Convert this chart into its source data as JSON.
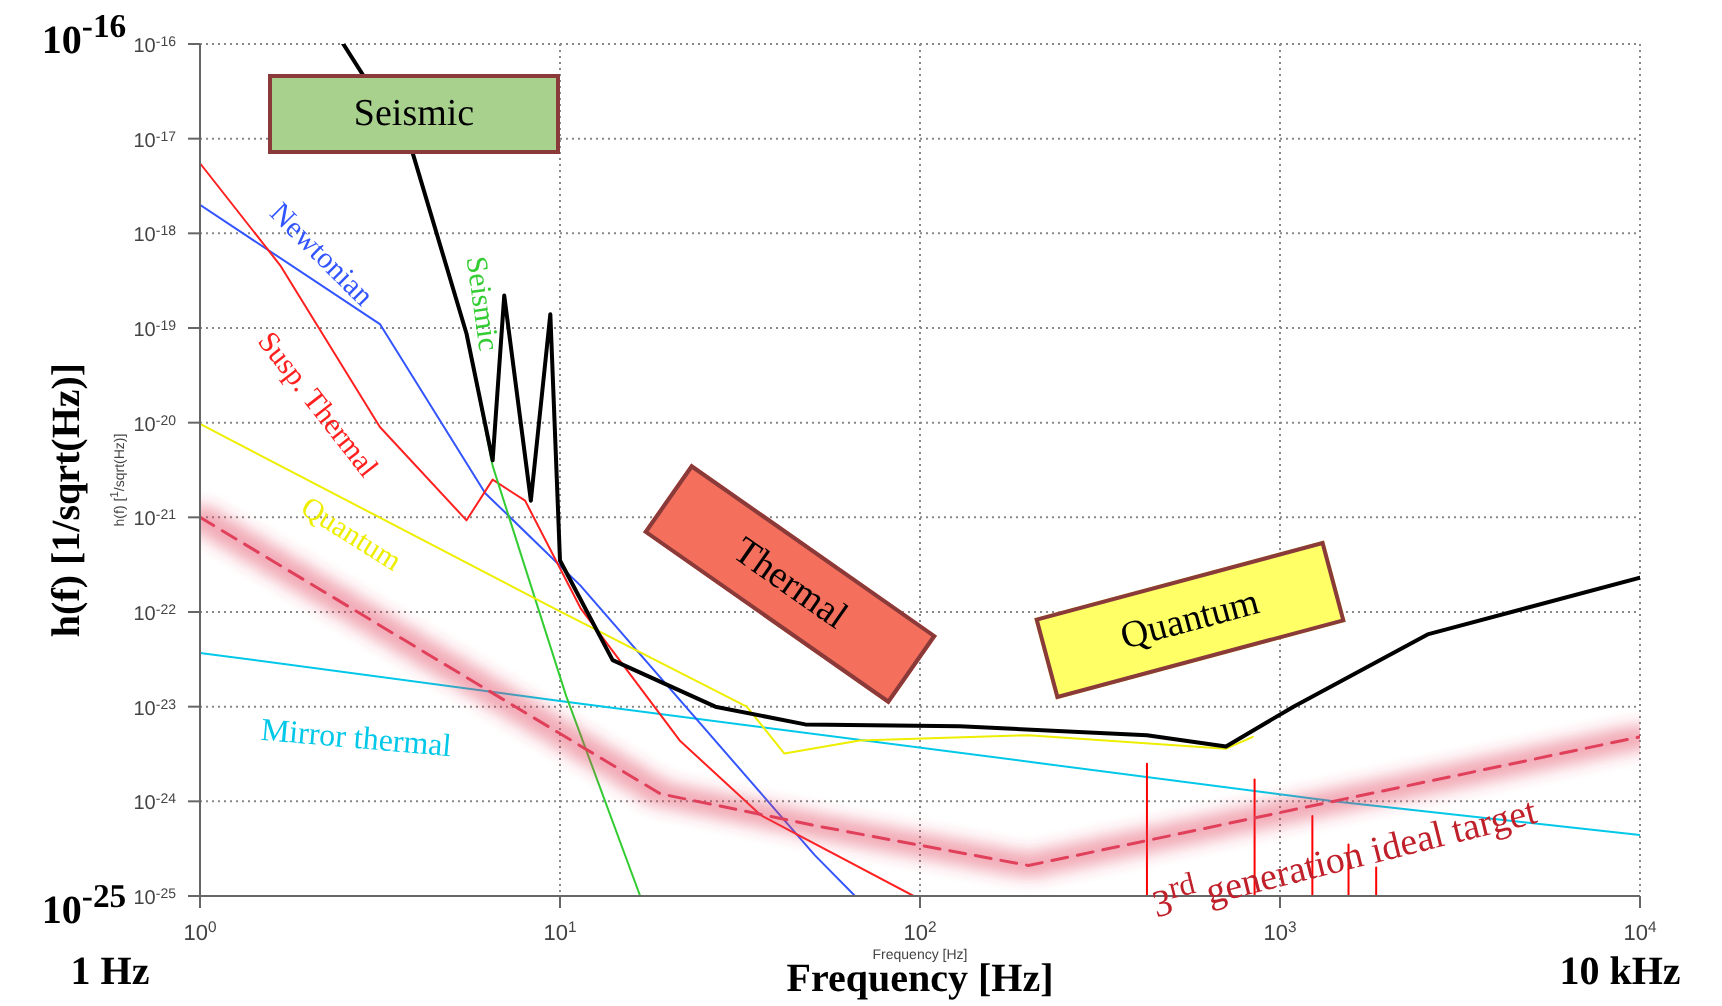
{
  "chart_data": {
    "type": "line",
    "ylabel": "h(f) [1/sqrt(Hz)]",
    "xlabel": "Frequency [Hz]",
    "log": "xy",
    "grid": true,
    "legend": false,
    "marker": "none",
    "xlim": [
      1,
      10000
    ],
    "ylim": [
      1e-25,
      1e-16
    ],
    "xticks": [
      {
        "value": 1,
        "label": "10$^{0}$"
      },
      {
        "value": 10,
        "label": "10$^{1}$"
      },
      {
        "value": 100,
        "label": "10$^{2}$"
      },
      {
        "value": 1000,
        "label": "10$^{3}$"
      },
      {
        "value": 10000,
        "label": "10$^{4}$"
      }
    ],
    "yticks": [
      {
        "value": 1e-25,
        "label": "10$^{-25}$"
      },
      {
        "value": 1e-24,
        "label": "10$^{-24}$"
      },
      {
        "value": 1e-23,
        "label": "10$^{-23}$"
      },
      {
        "value": 1e-22,
        "label": "10$^{-22}$"
      },
      {
        "value": 1e-21,
        "label": "10$^{-21}$"
      },
      {
        "value": 1e-20,
        "label": "10$^{-20}$"
      },
      {
        "value": 1e-19,
        "label": "10$^{-19}$"
      },
      {
        "value": 1e-18,
        "label": "10$^{-18}$"
      },
      {
        "value": 1e-17,
        "label": "10$^{-17}$"
      },
      {
        "value": 1e-16,
        "label": "10$^{-16}$"
      }
    ],
    "annotations": [
      "Seismic",
      "Thermal",
      "Quantum",
      "10$^{-16}$",
      "10$^{-25}$",
      "1 Hz",
      "10 kHz",
      "Frequency [Hz]",
      "h(f) [$^{1}$/sqrt(Hz)]"
    ],
    "series": [
      {
        "name": "Mirror thermal",
        "color": "#00c8e8",
        "x": [
          1,
          10,
          1410,
          10000
        ],
        "values": [
          3.7e-23,
          1.15e-23,
          1e-24,
          4.4e-25
        ]
      },
      {
        "name": "Newtonian",
        "color": "#3355ff",
        "x": [
          1,
          3.16,
          6.2,
          11.4,
          51,
          66
        ],
        "values": [
          2e-18,
          1.1e-19,
          1.8e-21,
          1.9e-22,
          2.7e-25,
          1e-25
        ]
      },
      {
        "name": "Susp. Thermal",
        "color": "#ff2020",
        "x": [
          1,
          1.67,
          3.16,
          5.5,
          6.5,
          8,
          11.4,
          21.5,
          36,
          96
        ],
        "values": [
          5.5e-18,
          4.6e-19,
          9e-21,
          9.3e-22,
          2.5e-21,
          1.5e-21,
          1.1e-22,
          4.4e-24,
          7.2e-25,
          1e-25
        ]
      },
      {
        "name": "Seismic",
        "color": "#33cc33",
        "x": [
          2.5,
          3.9,
          5.5,
          6.5,
          10.4,
          16.7
        ],
        "values": [
          1e-16,
          7e-18,
          8.7e-20,
          3.5e-21,
          1.3e-23,
          1e-25
        ]
      },
      {
        "name": "Quantum",
        "color": "#eeee00",
        "x": [
          1,
          9.6,
          33,
          42,
          68,
          200,
          708,
          840
        ],
        "values": [
          9.7e-21,
          1.1e-22,
          1e-23,
          3.2e-24,
          4.4e-24,
          5e-24,
          3.6e-24,
          4.8e-24
        ]
      },
      {
        "color": "#ff0000",
        "x": [
          427,
          427
        ],
        "values": [
          1e-25,
          2.5e-24
        ]
      },
      {
        "color": "#ff0000",
        "x": [
          850,
          850
        ],
        "values": [
          1e-25,
          1.7e-24
        ]
      },
      {
        "color": "#ff0000",
        "x": [
          1230,
          1230
        ],
        "values": [
          1e-25,
          7e-25
        ]
      },
      {
        "color": "#ff0000",
        "x": [
          1550,
          1550
        ],
        "values": [
          1e-25,
          3.5e-25
        ]
      },
      {
        "color": "#ff0000",
        "x": [
          1850,
          1850
        ],
        "values": [
          1e-25,
          2e-25
        ]
      },
      {
        "color": "#000000",
        "x": [
          2.5,
          3.9,
          5.5,
          6.5,
          7,
          8.3,
          9.4,
          10,
          14,
          27,
          48,
          129,
          427,
          708,
          1090,
          2570,
          10000
        ],
        "values": [
          1e-16,
          7e-18,
          8.7e-20,
          4e-21,
          2.2e-19,
          1.5e-21,
          1.4e-19,
          3.5e-22,
          3.1e-23,
          1e-23,
          6.5e-24,
          6.2e-24,
          5e-24,
          3.8e-24,
          1e-23,
          5.8e-23,
          2.3e-22
        ]
      },
      {
        "name": "3$^{rd}$ generation ideal target",
        "color": "#e0405a",
        "line_style": "dashed",
        "x": [
          1,
          19,
          53,
          200,
          10000
        ],
        "values": [
          1e-21,
          1.2e-24,
          5.4e-25,
          2.1e-25,
          4.8e-24
        ]
      }
    ]
  }
}
